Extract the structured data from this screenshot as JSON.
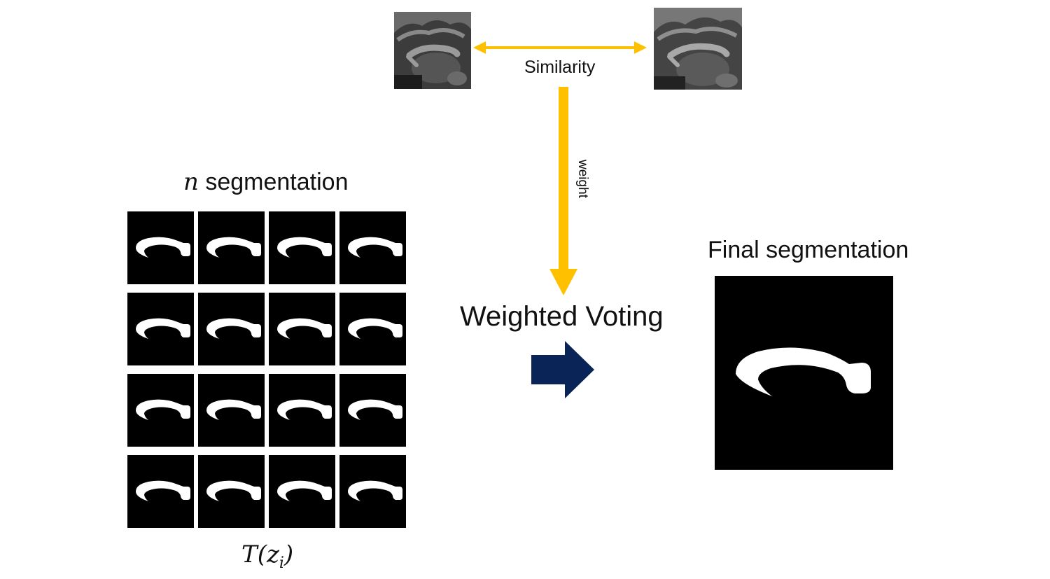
{
  "top": {
    "similarity_label": "Similarity",
    "weight_label": "weight"
  },
  "left": {
    "title_var": "n",
    "title_text": " segmentation",
    "formula_fn": "T",
    "formula_var": "z",
    "formula_sub": "i",
    "grid_rows": 4,
    "grid_cols": 4
  },
  "center": {
    "voting_label": "Weighted Voting"
  },
  "right": {
    "title": "Final segmentation"
  },
  "colors": {
    "arrow_yellow": "#FFC000",
    "arrow_navy": "#0A2457",
    "tile_bg": "#000000",
    "mask_fill": "#FFFFFF"
  }
}
